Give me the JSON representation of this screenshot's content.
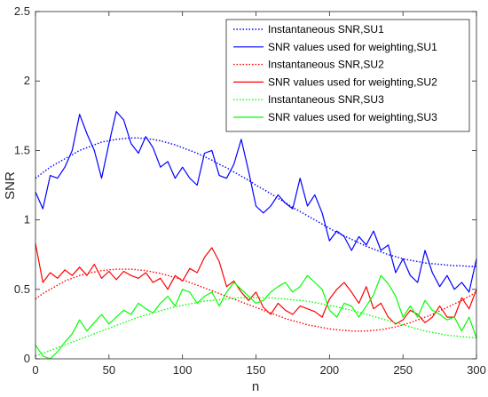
{
  "chart_data": {
    "type": "line",
    "xlabel": "n",
    "ylabel": "SNR",
    "xlim": [
      0,
      300
    ],
    "ylim": [
      0,
      2.5
    ],
    "xticks": [
      "0",
      "50",
      "100",
      "150",
      "200",
      "250",
      "300"
    ],
    "yticks": [
      "0",
      "0.5",
      "1",
      "1.5",
      "2",
      "2.5"
    ],
    "grid": false,
    "legend_position": "top-right",
    "x": [
      0,
      5,
      10,
      15,
      20,
      25,
      30,
      35,
      40,
      45,
      50,
      55,
      60,
      65,
      70,
      75,
      80,
      85,
      90,
      95,
      100,
      105,
      110,
      115,
      120,
      125,
      130,
      135,
      140,
      145,
      150,
      155,
      160,
      165,
      170,
      175,
      180,
      185,
      190,
      195,
      200,
      205,
      210,
      215,
      220,
      225,
      230,
      235,
      240,
      245,
      250,
      255,
      260,
      265,
      270,
      275,
      280,
      285,
      290,
      295,
      300
    ],
    "series": [
      {
        "name": "Instantaneous SNR,SU1",
        "color": "#0000ff",
        "style": "dotted",
        "values": [
          1.3,
          1.34,
          1.38,
          1.41,
          1.44,
          1.47,
          1.5,
          1.52,
          1.54,
          1.56,
          1.57,
          1.58,
          1.585,
          1.59,
          1.59,
          1.585,
          1.58,
          1.57,
          1.555,
          1.54,
          1.52,
          1.5,
          1.48,
          1.455,
          1.43,
          1.4,
          1.375,
          1.345,
          1.315,
          1.285,
          1.25,
          1.22,
          1.19,
          1.155,
          1.125,
          1.09,
          1.06,
          1.03,
          1.0,
          0.97,
          0.94,
          0.91,
          0.885,
          0.86,
          0.835,
          0.81,
          0.79,
          0.77,
          0.75,
          0.735,
          0.72,
          0.71,
          0.7,
          0.69,
          0.685,
          0.68,
          0.675,
          0.67,
          0.67,
          0.665,
          0.665
        ]
      },
      {
        "name": "SNR values used for weighting,SU1",
        "color": "#0000ff",
        "style": "solid",
        "values": [
          1.2,
          1.08,
          1.32,
          1.3,
          1.38,
          1.5,
          1.76,
          1.62,
          1.5,
          1.3,
          1.55,
          1.78,
          1.72,
          1.55,
          1.48,
          1.6,
          1.52,
          1.38,
          1.42,
          1.3,
          1.38,
          1.3,
          1.25,
          1.48,
          1.5,
          1.32,
          1.3,
          1.4,
          1.58,
          1.35,
          1.1,
          1.05,
          1.1,
          1.18,
          1.12,
          1.08,
          1.3,
          1.1,
          1.18,
          1.05,
          0.85,
          0.92,
          0.88,
          0.78,
          0.88,
          0.82,
          0.92,
          0.78,
          0.82,
          0.62,
          0.72,
          0.6,
          0.55,
          0.78,
          0.62,
          0.52,
          0.6,
          0.5,
          0.55,
          0.48,
          0.72
        ]
      },
      {
        "name": "Instantaneous SNR,SU2",
        "color": "#ff0000",
        "style": "dotted",
        "values": [
          0.43,
          0.47,
          0.5,
          0.53,
          0.56,
          0.58,
          0.6,
          0.615,
          0.625,
          0.635,
          0.64,
          0.645,
          0.645,
          0.645,
          0.64,
          0.635,
          0.625,
          0.615,
          0.6,
          0.585,
          0.57,
          0.55,
          0.53,
          0.51,
          0.49,
          0.47,
          0.45,
          0.43,
          0.41,
          0.39,
          0.37,
          0.35,
          0.33,
          0.31,
          0.29,
          0.275,
          0.26,
          0.245,
          0.235,
          0.225,
          0.215,
          0.21,
          0.205,
          0.2,
          0.2,
          0.2,
          0.205,
          0.21,
          0.22,
          0.23,
          0.245,
          0.26,
          0.28,
          0.3,
          0.32,
          0.345,
          0.37,
          0.395,
          0.42,
          0.45,
          0.48
        ]
      },
      {
        "name": "SNR values used for weighting,SU2",
        "color": "#ff0000",
        "style": "solid",
        "values": [
          0.83,
          0.55,
          0.62,
          0.58,
          0.64,
          0.6,
          0.66,
          0.6,
          0.68,
          0.58,
          0.63,
          0.57,
          0.63,
          0.6,
          0.58,
          0.62,
          0.55,
          0.58,
          0.5,
          0.6,
          0.56,
          0.65,
          0.62,
          0.73,
          0.8,
          0.7,
          0.52,
          0.56,
          0.48,
          0.42,
          0.48,
          0.37,
          0.32,
          0.4,
          0.35,
          0.32,
          0.38,
          0.36,
          0.34,
          0.3,
          0.43,
          0.5,
          0.55,
          0.48,
          0.4,
          0.52,
          0.36,
          0.4,
          0.3,
          0.25,
          0.28,
          0.35,
          0.32,
          0.26,
          0.3,
          0.38,
          0.3,
          0.3,
          0.44,
          0.36,
          0.5
        ]
      },
      {
        "name": "Instantaneous SNR,SU3",
        "color": "#00ff00",
        "style": "dotted",
        "values": [
          0.02,
          0.04,
          0.06,
          0.08,
          0.1,
          0.12,
          0.14,
          0.16,
          0.18,
          0.2,
          0.22,
          0.24,
          0.26,
          0.28,
          0.3,
          0.315,
          0.33,
          0.345,
          0.36,
          0.375,
          0.385,
          0.395,
          0.405,
          0.415,
          0.42,
          0.425,
          0.43,
          0.435,
          0.44,
          0.44,
          0.44,
          0.44,
          0.44,
          0.435,
          0.43,
          0.425,
          0.42,
          0.415,
          0.405,
          0.395,
          0.385,
          0.375,
          0.36,
          0.35,
          0.335,
          0.32,
          0.305,
          0.29,
          0.275,
          0.26,
          0.245,
          0.23,
          0.215,
          0.2,
          0.19,
          0.18,
          0.17,
          0.165,
          0.16,
          0.155,
          0.15
        ]
      },
      {
        "name": "SNR values used for weighting,SU3",
        "color": "#00ff00",
        "style": "solid",
        "values": [
          0.1,
          0.02,
          0.0,
          0.05,
          0.12,
          0.18,
          0.28,
          0.2,
          0.26,
          0.32,
          0.25,
          0.3,
          0.35,
          0.32,
          0.4,
          0.36,
          0.33,
          0.4,
          0.45,
          0.38,
          0.5,
          0.48,
          0.4,
          0.45,
          0.48,
          0.38,
          0.48,
          0.55,
          0.5,
          0.45,
          0.4,
          0.42,
          0.48,
          0.52,
          0.55,
          0.48,
          0.52,
          0.6,
          0.55,
          0.5,
          0.35,
          0.3,
          0.4,
          0.38,
          0.3,
          0.38,
          0.46,
          0.6,
          0.54,
          0.45,
          0.3,
          0.38,
          0.3,
          0.42,
          0.35,
          0.32,
          0.28,
          0.3,
          0.2,
          0.3,
          0.15
        ]
      }
    ]
  }
}
